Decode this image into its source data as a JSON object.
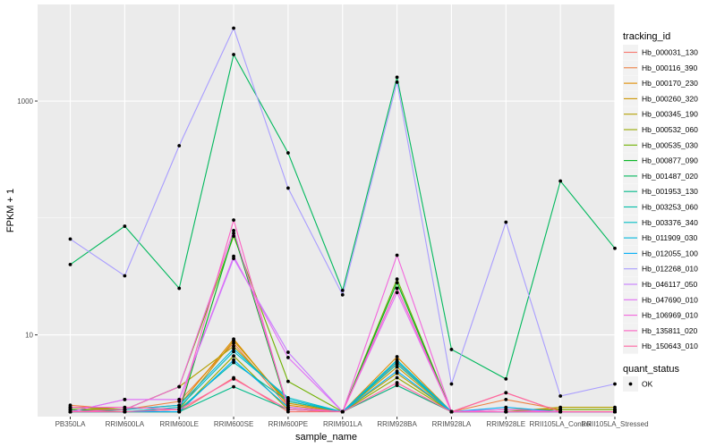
{
  "chart_data": {
    "type": "line",
    "xlabel": "sample_name",
    "ylabel": "FPKM + 1",
    "y_scale": "log10",
    "ylim": [
      2.0,
      6700
    ],
    "y_ticks": [
      10,
      1000
    ],
    "y_tick_labels": [
      "10",
      "1000"
    ],
    "grid": true,
    "legend_position": "right",
    "categories": [
      "PB350LA",
      "RRIM600LA",
      "RRIM600LE",
      "RRIM600SE",
      "RRIM600PE",
      "RRIM901LA",
      "RRIM928BA",
      "RRIM928LA",
      "RRIM928LE",
      "RRII105LA_Control",
      "RRII105LA_Stressed"
    ],
    "legend_title": "tracking_id",
    "series": [
      {
        "name": "Hb_000031_130",
        "color": "#F8766D",
        "values": [
          2.3,
          2.2,
          2.2,
          4.3,
          2.2,
          2.2,
          3.7,
          2.2,
          3.2,
          2.2,
          2.2
        ]
      },
      {
        "name": "Hb_000116_390",
        "color": "#EE8043",
        "values": [
          2.5,
          2.3,
          2.7,
          8.5,
          2.4,
          2.2,
          5.8,
          2.2,
          2.8,
          2.3,
          2.3
        ]
      },
      {
        "name": "Hb_000170_230",
        "color": "#DF8C00",
        "values": [
          2.3,
          2.3,
          2.5,
          9.2,
          2.5,
          2.2,
          6.5,
          2.2,
          2.3,
          2.3,
          2.3
        ]
      },
      {
        "name": "Hb_000260_320",
        "color": "#CC9600",
        "values": [
          2.2,
          2.2,
          2.3,
          8.9,
          2.6,
          2.2,
          5.3,
          2.2,
          2.2,
          2.2,
          2.2
        ]
      },
      {
        "name": "Hb_000345_190",
        "color": "#B49F00",
        "values": [
          2.4,
          2.3,
          3.6,
          8.0,
          2.7,
          2.2,
          4.7,
          2.2,
          2.2,
          2.4,
          2.4
        ]
      },
      {
        "name": "Hb_000532_060",
        "color": "#96A900",
        "values": [
          2.2,
          2.2,
          2.2,
          6.6,
          2.3,
          2.2,
          4.3,
          2.2,
          2.2,
          2.2,
          2.2
        ]
      },
      {
        "name": "Hb_000535_030",
        "color": "#6FB000",
        "values": [
          2.4,
          2.3,
          3.6,
          70,
          4.0,
          2.2,
          30,
          2.2,
          2.2,
          2.3,
          2.3
        ]
      },
      {
        "name": "Hb_000877_090",
        "color": "#00B41E",
        "values": [
          2.3,
          2.2,
          2.2,
          74,
          2.3,
          2.2,
          28,
          2.2,
          2.2,
          2.2,
          2.2
        ]
      },
      {
        "name": "Hb_001487_020",
        "color": "#00B85C",
        "values": [
          40,
          85,
          25,
          2500,
          360,
          24,
          1600,
          7.5,
          4.2,
          207,
          55
        ]
      },
      {
        "name": "Hb_001953_130",
        "color": "#00BB8B",
        "values": [
          2.2,
          2.2,
          2.2,
          3.6,
          2.3,
          2.2,
          3.7,
          2.2,
          2.2,
          2.2,
          2.2
        ]
      },
      {
        "name": "Hb_003253_060",
        "color": "#00BDA8",
        "values": [
          2.2,
          2.2,
          2.3,
          5.8,
          2.7,
          2.2,
          5.6,
          2.2,
          2.2,
          2.2,
          2.2
        ]
      },
      {
        "name": "Hb_003376_340",
        "color": "#00BDC4",
        "values": [
          2.2,
          2.2,
          2.4,
          7.2,
          2.9,
          2.2,
          6.1,
          2.2,
          2.2,
          2.2,
          2.2
        ]
      },
      {
        "name": "Hb_011909_030",
        "color": "#00B8DE",
        "values": [
          2.2,
          2.3,
          2.5,
          7.6,
          2.8,
          2.2,
          5.9,
          2.2,
          2.2,
          2.2,
          2.2
        ]
      },
      {
        "name": "Hb_012055_100",
        "color": "#00ADF7",
        "values": [
          2.2,
          2.2,
          2.2,
          6.1,
          2.4,
          2.2,
          4.9,
          2.2,
          2.4,
          2.2,
          2.2
        ]
      },
      {
        "name": "Hb_012268_010",
        "color": "#A99DFF",
        "values": [
          66,
          32,
          415,
          4200,
          180,
          22,
          1450,
          3.8,
          92,
          3.0,
          3.8
        ]
      },
      {
        "name": "Hb_046117_050",
        "color": "#C77CFF",
        "values": [
          2.2,
          2.8,
          2.8,
          45,
          7.1,
          2.2,
          25,
          2.2,
          2.2,
          2.2,
          2.2
        ]
      },
      {
        "name": "Hb_047690_010",
        "color": "#E26DF5",
        "values": [
          2.2,
          2.8,
          2.8,
          47,
          6.4,
          2.2,
          23,
          2.2,
          2.3,
          2.2,
          2.2
        ]
      },
      {
        "name": "Hb_106969_010",
        "color": "#F364DC",
        "values": [
          2.2,
          2.3,
          3.6,
          78,
          2.4,
          2.2,
          48,
          2.2,
          2.2,
          2.2,
          2.2
        ]
      },
      {
        "name": "Hb_135811_020",
        "color": "#FC61C2",
        "values": [
          2.4,
          2.4,
          2.3,
          96,
          2.3,
          2.2,
          25,
          2.2,
          2.2,
          2.2,
          2.2
        ]
      },
      {
        "name": "Hb_150643_010",
        "color": "#FF64A3",
        "values": [
          2.2,
          2.2,
          2.3,
          4.2,
          2.3,
          2.2,
          3.9,
          2.2,
          3.2,
          2.2,
          2.2
        ]
      }
    ],
    "legend2_title": "quant_status",
    "legend2_items": [
      "OK"
    ]
  }
}
